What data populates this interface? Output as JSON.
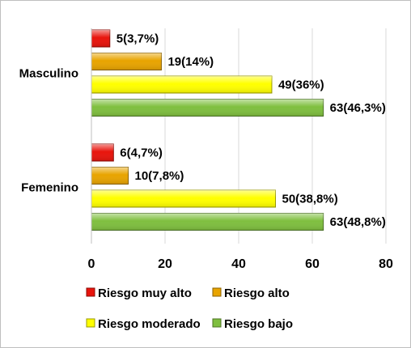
{
  "chart_data": {
    "type": "bar",
    "orientation": "horizontal",
    "categories": [
      "Masculino",
      "Femenino"
    ],
    "series": [
      {
        "name": "Riesgo muy alto",
        "color": "#e8140c",
        "values": [
          5,
          6
        ],
        "labels": [
          "5(3,7%)",
          "6(4,7%)"
        ]
      },
      {
        "name": "Riesgo alto",
        "color": "#e8a400",
        "values": [
          19,
          10
        ],
        "labels": [
          "19(14%)",
          "10(7,8%)"
        ]
      },
      {
        "name": "Riesgo moderado",
        "color": "#ffff00",
        "values": [
          49,
          50
        ],
        "labels": [
          "49(36%)",
          "50(38,8%)"
        ]
      },
      {
        "name": "Riesgo bajo",
        "color": "#7fbf3f",
        "values": [
          63,
          63
        ],
        "labels": [
          "63(46,3%)",
          "63(48,8%)"
        ]
      }
    ],
    "xlim": [
      0,
      80
    ],
    "xticks": [
      0,
      20,
      40,
      60,
      80
    ],
    "xtick_labels": [
      "0",
      "20",
      "40",
      "60",
      "80"
    ],
    "grid": "vertical",
    "legend_position": "bottom"
  }
}
